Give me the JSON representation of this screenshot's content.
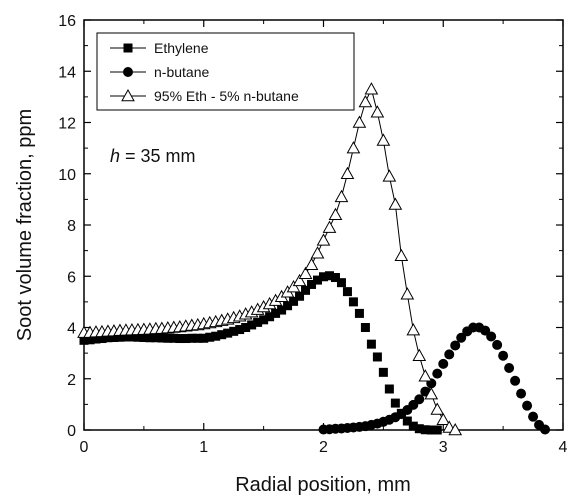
{
  "chart_data": {
    "type": "scatter",
    "title": "",
    "xlabel": "Radial position, mm",
    "ylabel": "Soot volume fraction, ppm",
    "xlim": [
      0,
      4
    ],
    "ylim": [
      0,
      16
    ],
    "xticks": [
      "0",
      "1",
      "2",
      "3",
      "4"
    ],
    "yticks": [
      "0",
      "2",
      "4",
      "6",
      "8",
      "10",
      "12",
      "14",
      "16"
    ],
    "grid": false,
    "legend_position": "top-left",
    "annotation": {
      "italic": "h",
      "rest": " = 35 mm"
    },
    "series": [
      {
        "name": "Ethylene",
        "marker": "filled-square",
        "line": false,
        "x": [
          0.0,
          0.05,
          0.1,
          0.15,
          0.2,
          0.25,
          0.3,
          0.35,
          0.4,
          0.45,
          0.5,
          0.55,
          0.6,
          0.65,
          0.7,
          0.75,
          0.8,
          0.85,
          0.9,
          0.95,
          1.0,
          1.05,
          1.1,
          1.15,
          1.2,
          1.25,
          1.3,
          1.35,
          1.4,
          1.45,
          1.5,
          1.55,
          1.6,
          1.65,
          1.7,
          1.75,
          1.8,
          1.85,
          1.9,
          1.95,
          2.0,
          2.05,
          2.1,
          2.15,
          2.2,
          2.25,
          2.3,
          2.35,
          2.4,
          2.45,
          2.5,
          2.55,
          2.6,
          2.65,
          2.7,
          2.75,
          2.8,
          2.85,
          2.9,
          2.95
        ],
        "y": [
          3.5,
          3.52,
          3.55,
          3.57,
          3.6,
          3.61,
          3.62,
          3.63,
          3.63,
          3.62,
          3.61,
          3.6,
          3.6,
          3.59,
          3.58,
          3.58,
          3.57,
          3.57,
          3.58,
          3.58,
          3.58,
          3.62,
          3.66,
          3.72,
          3.78,
          3.85,
          3.92,
          4.0,
          4.1,
          4.2,
          4.3,
          4.42,
          4.55,
          4.68,
          4.85,
          5.02,
          5.22,
          5.45,
          5.68,
          5.85,
          5.98,
          6.02,
          5.95,
          5.75,
          5.4,
          5.0,
          4.55,
          4.0,
          3.35,
          2.85,
          2.25,
          1.6,
          1.05,
          0.65,
          0.35,
          0.15,
          0.05,
          0.01,
          0.0,
          0.0
        ]
      },
      {
        "name": "n-butane",
        "marker": "filled-circle",
        "line": false,
        "x": [
          2.0,
          2.05,
          2.1,
          2.15,
          2.2,
          2.25,
          2.3,
          2.35,
          2.4,
          2.45,
          2.5,
          2.55,
          2.6,
          2.65,
          2.7,
          2.75,
          2.8,
          2.85,
          2.9,
          2.95,
          3.0,
          3.05,
          3.1,
          3.15,
          3.2,
          3.25,
          3.3,
          3.35,
          3.4,
          3.45,
          3.5,
          3.55,
          3.6,
          3.65,
          3.7,
          3.75,
          3.8,
          3.85
        ],
        "y": [
          0.02,
          0.03,
          0.05,
          0.06,
          0.08,
          0.1,
          0.12,
          0.15,
          0.2,
          0.25,
          0.32,
          0.4,
          0.5,
          0.62,
          0.78,
          0.98,
          1.2,
          1.5,
          1.82,
          2.2,
          2.58,
          2.95,
          3.3,
          3.6,
          3.85,
          4.0,
          4.0,
          3.88,
          3.65,
          3.32,
          2.9,
          2.42,
          1.92,
          1.42,
          0.95,
          0.52,
          0.2,
          0.02
        ]
      },
      {
        "name": "95% Eth - 5% n-butane",
        "marker": "open-triangle",
        "line": true,
        "x": [
          0.0,
          0.05,
          0.1,
          0.15,
          0.2,
          0.25,
          0.3,
          0.35,
          0.4,
          0.45,
          0.5,
          0.55,
          0.6,
          0.65,
          0.7,
          0.75,
          0.8,
          0.85,
          0.9,
          0.95,
          1.0,
          1.05,
          1.1,
          1.15,
          1.2,
          1.25,
          1.3,
          1.35,
          1.4,
          1.45,
          1.5,
          1.55,
          1.6,
          1.65,
          1.7,
          1.75,
          1.8,
          1.85,
          1.9,
          1.95,
          2.0,
          2.05,
          2.1,
          2.15,
          2.2,
          2.25,
          2.3,
          2.35,
          2.4,
          2.45,
          2.5,
          2.55,
          2.6,
          2.65,
          2.7,
          2.75,
          2.8,
          2.85,
          2.9,
          2.95,
          3.0,
          3.05,
          3.1
        ],
        "y": [
          3.8,
          3.8,
          3.82,
          3.83,
          3.85,
          3.86,
          3.88,
          3.89,
          3.9,
          3.91,
          3.92,
          3.93,
          3.95,
          3.96,
          3.98,
          4.0,
          4.02,
          4.05,
          4.08,
          4.1,
          4.14,
          4.18,
          4.22,
          4.27,
          4.32,
          4.38,
          4.44,
          4.52,
          4.6,
          4.7,
          4.8,
          4.92,
          5.05,
          5.2,
          5.38,
          5.58,
          5.82,
          6.1,
          6.45,
          6.9,
          7.4,
          7.9,
          8.4,
          9.1,
          10.0,
          11.0,
          12.0,
          12.8,
          13.3,
          12.4,
          11.3,
          9.9,
          8.8,
          6.8,
          5.3,
          3.9,
          2.9,
          2.1,
          1.4,
          0.8,
          0.4,
          0.1,
          0.0
        ]
      }
    ]
  }
}
